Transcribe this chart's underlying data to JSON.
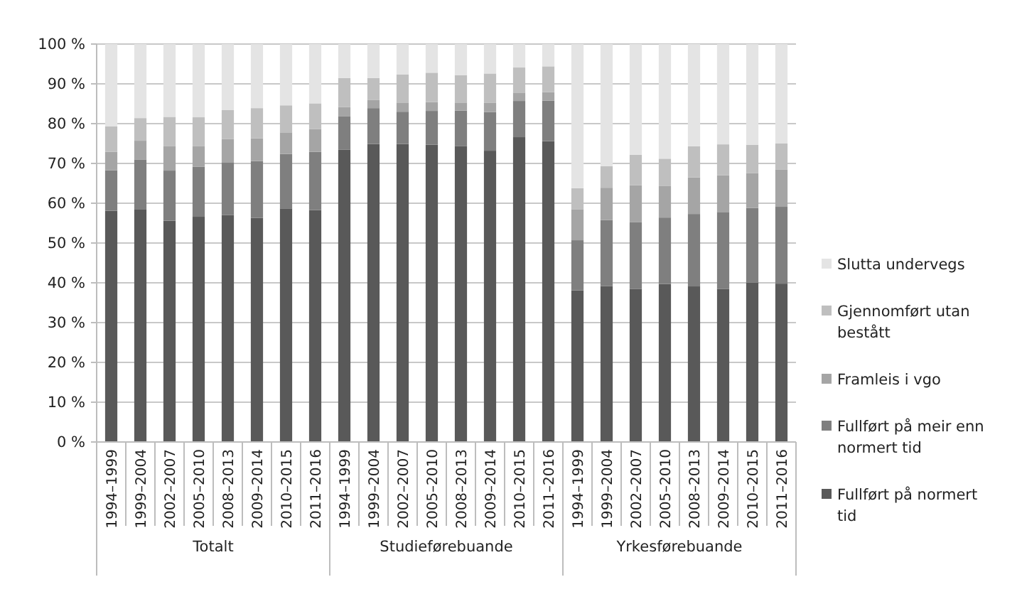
{
  "chart_data": {
    "type": "bar",
    "stacked": true,
    "categories": [
      "1994–1999",
      "1999–2004",
      "2002–2007",
      "2005–2010",
      "2008–2013",
      "2009–2014",
      "2010–2015",
      "2011–2016",
      "1994–1999",
      "1999–2004",
      "2002–2007",
      "2005–2010",
      "2008–2013",
      "2009–2014",
      "2010–2015",
      "2011–2016",
      "1994–1999",
      "1999–2004",
      "2002–2007",
      "2005–2010",
      "2008–2013",
      "2009–2014",
      "2010–2015",
      "2011–2016"
    ],
    "series": [
      {
        "name": "Fullført på normert tid",
        "color": "#595959",
        "values": [
          58.1,
          58.4,
          55.6,
          56.6,
          57.0,
          56.3,
          58.7,
          58.3,
          73.5,
          74.9,
          74.9,
          74.7,
          74.4,
          73.2,
          76.6,
          75.6,
          38.1,
          39.2,
          38.5,
          39.7,
          39.1,
          38.5,
          40.1,
          39.8
        ]
      },
      {
        "name": "Fullført på meir enn normert tid",
        "color": "#7f7f7f",
        "values": [
          10.2,
          12.6,
          12.6,
          12.6,
          13.3,
          14.3,
          13.7,
          14.6,
          8.3,
          9.0,
          8.1,
          8.5,
          8.9,
          9.7,
          9.1,
          10.2,
          12.6,
          16.6,
          16.7,
          16.7,
          18.2,
          19.3,
          18.7,
          19.3
        ]
      },
      {
        "name": "Framleis i vgo",
        "color": "#a5a5a5",
        "values": [
          4.6,
          4.7,
          6.1,
          5.1,
          5.8,
          5.7,
          5.4,
          5.7,
          2.4,
          2.1,
          2.3,
          2.2,
          2.0,
          2.3,
          2.1,
          2.1,
          7.8,
          8.1,
          9.3,
          7.9,
          9.2,
          9.2,
          8.8,
          9.4
        ]
      },
      {
        "name": "Gjennomført utan bestått",
        "color": "#bfbfbf",
        "values": [
          6.4,
          5.7,
          7.4,
          7.3,
          7.3,
          7.6,
          6.8,
          6.5,
          7.3,
          5.5,
          7.1,
          7.4,
          6.9,
          7.4,
          6.3,
          6.5,
          5.3,
          5.4,
          7.7,
          6.9,
          7.8,
          7.8,
          7.1,
          6.5
        ]
      },
      {
        "name": "Slutta undervegs",
        "color": "#e4e4e4",
        "values": [
          20.7,
          18.6,
          18.3,
          18.4,
          16.6,
          16.1,
          15.4,
          14.9,
          8.5,
          8.5,
          7.6,
          7.2,
          7.8,
          7.4,
          5.9,
          5.6,
          36.2,
          30.7,
          27.8,
          28.8,
          25.7,
          25.2,
          25.3,
          25.0
        ]
      }
    ],
    "ylim": [
      0,
      100
    ],
    "yticks": [
      {
        "value": 0,
        "label": "0 %"
      },
      {
        "value": 10,
        "label": "10 %"
      },
      {
        "value": 20,
        "label": "20 %"
      },
      {
        "value": 30,
        "label": "30 %"
      },
      {
        "value": 40,
        "label": "40 %"
      },
      {
        "value": 50,
        "label": "50 %"
      },
      {
        "value": 60,
        "label": "60 %"
      },
      {
        "value": 70,
        "label": "70 %"
      },
      {
        "value": 80,
        "label": "80 %"
      },
      {
        "value": 90,
        "label": "90 %"
      },
      {
        "value": 100,
        "label": "100 %"
      }
    ],
    "grid": "y",
    "legend": "right",
    "annotations": [
      "Totalt",
      "Studieførebuande",
      "Yrkesførebuande"
    ]
  }
}
